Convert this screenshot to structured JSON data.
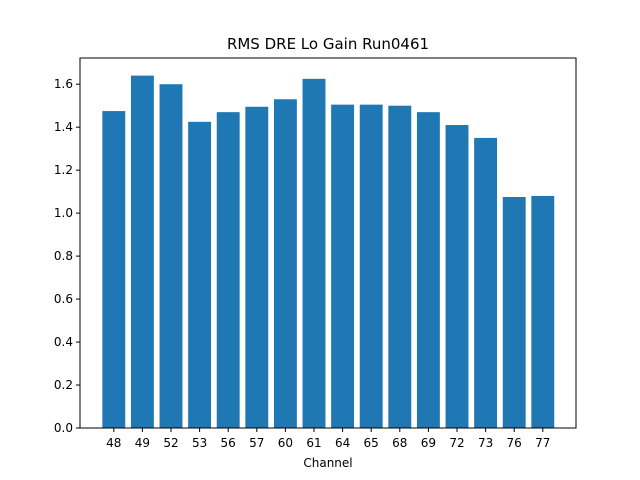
{
  "chart_data": {
    "type": "bar",
    "title": "RMS DRE Lo Gain Run0461",
    "xlabel": "Channel",
    "ylabel": "",
    "categories": [
      "48",
      "49",
      "52",
      "53",
      "56",
      "57",
      "60",
      "61",
      "64",
      "65",
      "68",
      "69",
      "72",
      "73",
      "76",
      "77"
    ],
    "values": [
      1.475,
      1.64,
      1.6,
      1.425,
      1.47,
      1.495,
      1.53,
      1.625,
      1.505,
      1.505,
      1.5,
      1.47,
      1.41,
      1.35,
      1.075,
      1.08
    ],
    "ylim": [
      0,
      1.722
    ],
    "yticks": [
      "0.0",
      "0.2",
      "0.4",
      "0.6",
      "0.8",
      "1.0",
      "1.2",
      "1.4",
      "1.6"
    ],
    "grid": false,
    "legend": "none",
    "bar_color": "#1f77b4"
  }
}
